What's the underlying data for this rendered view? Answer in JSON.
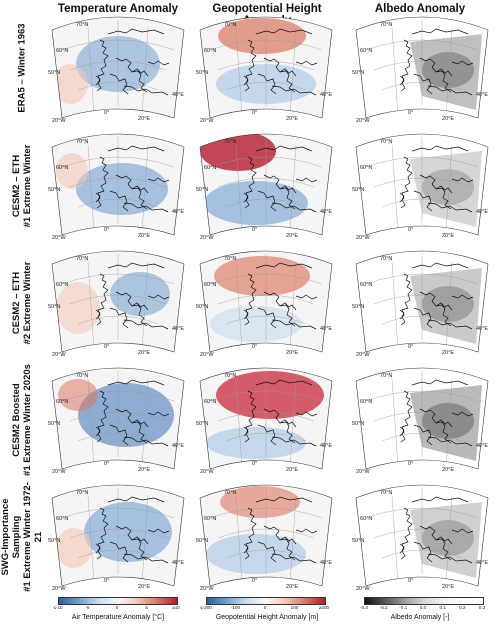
{
  "columns": [
    {
      "title": "Temperature Anomaly",
      "colorbar_label": "Air Temperature Anomaly [°C]",
      "ticks": [
        "≤-10",
        "-5",
        "0",
        "5",
        "≥10"
      ],
      "colormap": "diverging-blue-red"
    },
    {
      "title": "Geopotential Height Anomaly",
      "colorbar_label": "Geopotential Height Anomaly [m]",
      "ticks": [
        "≤-200",
        "-100",
        "0",
        "100",
        "≥200"
      ],
      "colormap": "diverging-blue-red"
    },
    {
      "title": "Albedo Anomaly",
      "colorbar_label": "Albedo Anomaly [-]",
      "ticks": [
        "-0.3",
        "-0.2",
        "-0.1",
        "0.0",
        "0.1",
        "0.2",
        "0.3"
      ],
      "colormap": "greyscale"
    }
  ],
  "rows": [
    {
      "label_lines": [
        "ERA5 – Winter 1963"
      ]
    },
    {
      "label_lines": [
        "CESM2 – ETH",
        "#1 Extreme Winter"
      ]
    },
    {
      "label_lines": [
        "CESM2 – ETH",
        "#2 Extreme Winter"
      ]
    },
    {
      "label_lines": [
        "CESM2 Boosted",
        "#1 Extreme Winter 2020s"
      ]
    },
    {
      "label_lines": [
        "SWG-Importance Sampling",
        "#1 Extreme Winter 1972-21"
      ]
    }
  ],
  "map_labels": {
    "latitudes": [
      "70°N",
      "60°N",
      "50°N"
    ],
    "longitudes": [
      "20°W",
      "0°",
      "20°E",
      "40°E"
    ]
  },
  "colors": {
    "cold": "#3b6fb6",
    "warm": "#c8283a",
    "neutral": "#f7f7f7",
    "land_grey": "#9a9a9a"
  }
}
